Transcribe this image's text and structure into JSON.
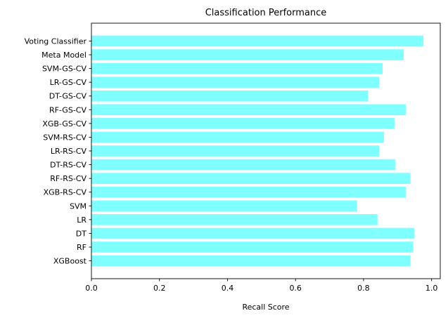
{
  "chart_data": {
    "type": "bar",
    "orientation": "horizontal",
    "title": "Classification Performance",
    "xlabel": "Recall Score",
    "ylabel": "",
    "xlim": [
      0,
      1.0255
    ],
    "xticks": [
      "0.0",
      "0.2",
      "0.4",
      "0.6",
      "0.8",
      "1.0"
    ],
    "grid": false,
    "legend": "none",
    "bar_color": "#7fffff",
    "categories": [
      "XGBoost",
      "RF",
      "DT",
      "LR",
      "SVM",
      "XGB-RS-CV",
      "RF-RS-CV",
      "DT-RS-CV",
      "LR-RS-CV",
      "SVM-RS-CV",
      "XGB-GS-CV",
      "RF-GS-CV",
      "DT-GS-CV",
      "LR-GS-CV",
      "SVM-GS-CV",
      "Meta Model",
      "Voting Classifier"
    ],
    "values": [
      0.938,
      0.946,
      0.949,
      0.841,
      0.781,
      0.924,
      0.938,
      0.894,
      0.846,
      0.86,
      0.891,
      0.924,
      0.813,
      0.846,
      0.856,
      0.918,
      0.976
    ]
  }
}
